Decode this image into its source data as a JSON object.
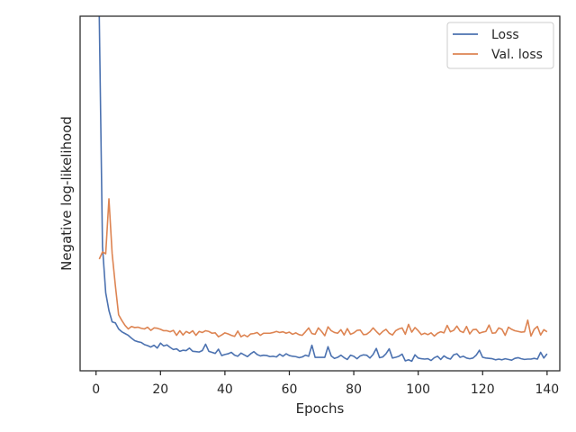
{
  "chart_data": {
    "type": "line",
    "xlabel": "Epochs",
    "ylabel": "Negative log-likelihood",
    "xlim": [
      -4.95,
      143.95
    ],
    "ylim": [
      0.0,
      1.0
    ],
    "x_ticks": [
      0,
      20,
      40,
      60,
      80,
      100,
      120,
      140
    ],
    "y_ticks_labeled": false,
    "grid": false,
    "legend_position": "top-right",
    "series": [
      {
        "name": "Loss",
        "color": "#4c72b0",
        "x": [
          1,
          2,
          3,
          4,
          5,
          6,
          7,
          8,
          9,
          10,
          11,
          12,
          13,
          14,
          15,
          16,
          17,
          18,
          19,
          20,
          21,
          22,
          23,
          24,
          25,
          26,
          27,
          28,
          29,
          30,
          31,
          32,
          33,
          34,
          35,
          36,
          37,
          38,
          39,
          40,
          41,
          42,
          43,
          44,
          45,
          46,
          47,
          48,
          49,
          50,
          51,
          52,
          53,
          54,
          55,
          56,
          57,
          58,
          59,
          60,
          61,
          62,
          63,
          64,
          65,
          66,
          67,
          68,
          69,
          70,
          71,
          72,
          73,
          74,
          75,
          76,
          77,
          78,
          79,
          80,
          81,
          82,
          83,
          84,
          85,
          86,
          87,
          88,
          89,
          90,
          91,
          92,
          93,
          94,
          95,
          96,
          97,
          98,
          99,
          100,
          101,
          102,
          103,
          104,
          105,
          106,
          107,
          108,
          109,
          110,
          111,
          112,
          113,
          114,
          115,
          116,
          117,
          118,
          119,
          120,
          121,
          122,
          123,
          124,
          125,
          126,
          127,
          128,
          129,
          130,
          131,
          132,
          133,
          134,
          135,
          136,
          137,
          138,
          139,
          140
        ],
        "values": [
          1.0,
          0.35,
          0.22,
          0.17,
          0.138,
          0.135,
          0.118,
          0.11,
          0.105,
          0.1,
          0.092,
          0.085,
          0.082,
          0.08,
          0.074,
          0.071,
          0.067,
          0.072,
          0.064,
          0.078,
          0.07,
          0.073,
          0.066,
          0.06,
          0.062,
          0.055,
          0.058,
          0.057,
          0.064,
          0.055,
          0.054,
          0.053,
          0.057,
          0.075,
          0.055,
          0.052,
          0.049,
          0.061,
          0.043,
          0.046,
          0.048,
          0.052,
          0.044,
          0.041,
          0.05,
          0.045,
          0.04,
          0.048,
          0.054,
          0.046,
          0.042,
          0.044,
          0.043,
          0.04,
          0.041,
          0.039,
          0.047,
          0.041,
          0.048,
          0.043,
          0.041,
          0.04,
          0.037,
          0.039,
          0.044,
          0.041,
          0.072,
          0.038,
          0.038,
          0.038,
          0.038,
          0.068,
          0.042,
          0.035,
          0.038,
          0.044,
          0.037,
          0.032,
          0.044,
          0.041,
          0.034,
          0.042,
          0.045,
          0.044,
          0.036,
          0.046,
          0.063,
          0.037,
          0.039,
          0.048,
          0.062,
          0.036,
          0.038,
          0.041,
          0.047,
          0.028,
          0.031,
          0.027,
          0.045,
          0.036,
          0.034,
          0.033,
          0.034,
          0.029,
          0.037,
          0.041,
          0.032,
          0.042,
          0.036,
          0.033,
          0.045,
          0.048,
          0.038,
          0.041,
          0.036,
          0.034,
          0.036,
          0.044,
          0.058,
          0.038,
          0.036,
          0.035,
          0.034,
          0.031,
          0.033,
          0.031,
          0.034,
          0.032,
          0.03,
          0.035,
          0.037,
          0.034,
          0.032,
          0.033,
          0.033,
          0.035,
          0.033,
          0.052,
          0.036,
          0.048
        ]
      },
      {
        "name": "Val. loss",
        "color": "#dd8452",
        "x": [
          1,
          2,
          3,
          4,
          5,
          6,
          7,
          8,
          9,
          10,
          11,
          12,
          13,
          14,
          15,
          16,
          17,
          18,
          19,
          20,
          21,
          22,
          23,
          24,
          25,
          26,
          27,
          28,
          29,
          30,
          31,
          32,
          33,
          34,
          35,
          36,
          37,
          38,
          39,
          40,
          41,
          42,
          43,
          44,
          45,
          46,
          47,
          48,
          49,
          50,
          51,
          52,
          53,
          54,
          55,
          56,
          57,
          58,
          59,
          60,
          61,
          62,
          63,
          64,
          65,
          66,
          67,
          68,
          69,
          70,
          71,
          72,
          73,
          74,
          75,
          76,
          77,
          78,
          79,
          80,
          81,
          82,
          83,
          84,
          85,
          86,
          87,
          88,
          89,
          90,
          91,
          92,
          93,
          94,
          95,
          96,
          97,
          98,
          99,
          100,
          101,
          102,
          103,
          104,
          105,
          106,
          107,
          108,
          109,
          110,
          111,
          112,
          113,
          114,
          115,
          116,
          117,
          118,
          119,
          120,
          121,
          122,
          123,
          124,
          125,
          126,
          127,
          128,
          129,
          130,
          131,
          132,
          133,
          134,
          135,
          136,
          137,
          138,
          139,
          140
        ],
        "values": [
          0.315,
          0.335,
          0.33,
          0.485,
          0.33,
          0.24,
          0.158,
          0.142,
          0.128,
          0.118,
          0.125,
          0.122,
          0.123,
          0.12,
          0.118,
          0.123,
          0.114,
          0.121,
          0.12,
          0.117,
          0.113,
          0.113,
          0.11,
          0.114,
          0.1,
          0.113,
          0.101,
          0.111,
          0.106,
          0.113,
          0.1,
          0.111,
          0.108,
          0.113,
          0.111,
          0.106,
          0.107,
          0.096,
          0.101,
          0.107,
          0.104,
          0.1,
          0.097,
          0.112,
          0.096,
          0.101,
          0.096,
          0.104,
          0.105,
          0.108,
          0.1,
          0.106,
          0.106,
          0.106,
          0.108,
          0.111,
          0.108,
          0.11,
          0.106,
          0.109,
          0.103,
          0.107,
          0.102,
          0.1,
          0.11,
          0.121,
          0.105,
          0.103,
          0.121,
          0.111,
          0.099,
          0.124,
          0.113,
          0.108,
          0.106,
          0.116,
          0.101,
          0.119,
          0.103,
          0.107,
          0.114,
          0.115,
          0.102,
          0.103,
          0.11,
          0.121,
          0.111,
          0.102,
          0.111,
          0.117,
          0.106,
          0.101,
          0.113,
          0.118,
          0.121,
          0.103,
          0.131,
          0.109,
          0.122,
          0.113,
          0.102,
          0.106,
          0.102,
          0.107,
          0.098,
          0.106,
          0.11,
          0.107,
          0.128,
          0.11,
          0.114,
          0.126,
          0.112,
          0.108,
          0.125,
          0.104,
          0.116,
          0.117,
          0.106,
          0.109,
          0.111,
          0.129,
          0.106,
          0.107,
          0.121,
          0.117,
          0.1,
          0.123,
          0.117,
          0.113,
          0.111,
          0.109,
          0.11,
          0.143,
          0.098,
          0.117,
          0.125,
          0.101,
          0.116,
          0.11
        ]
      }
    ]
  }
}
